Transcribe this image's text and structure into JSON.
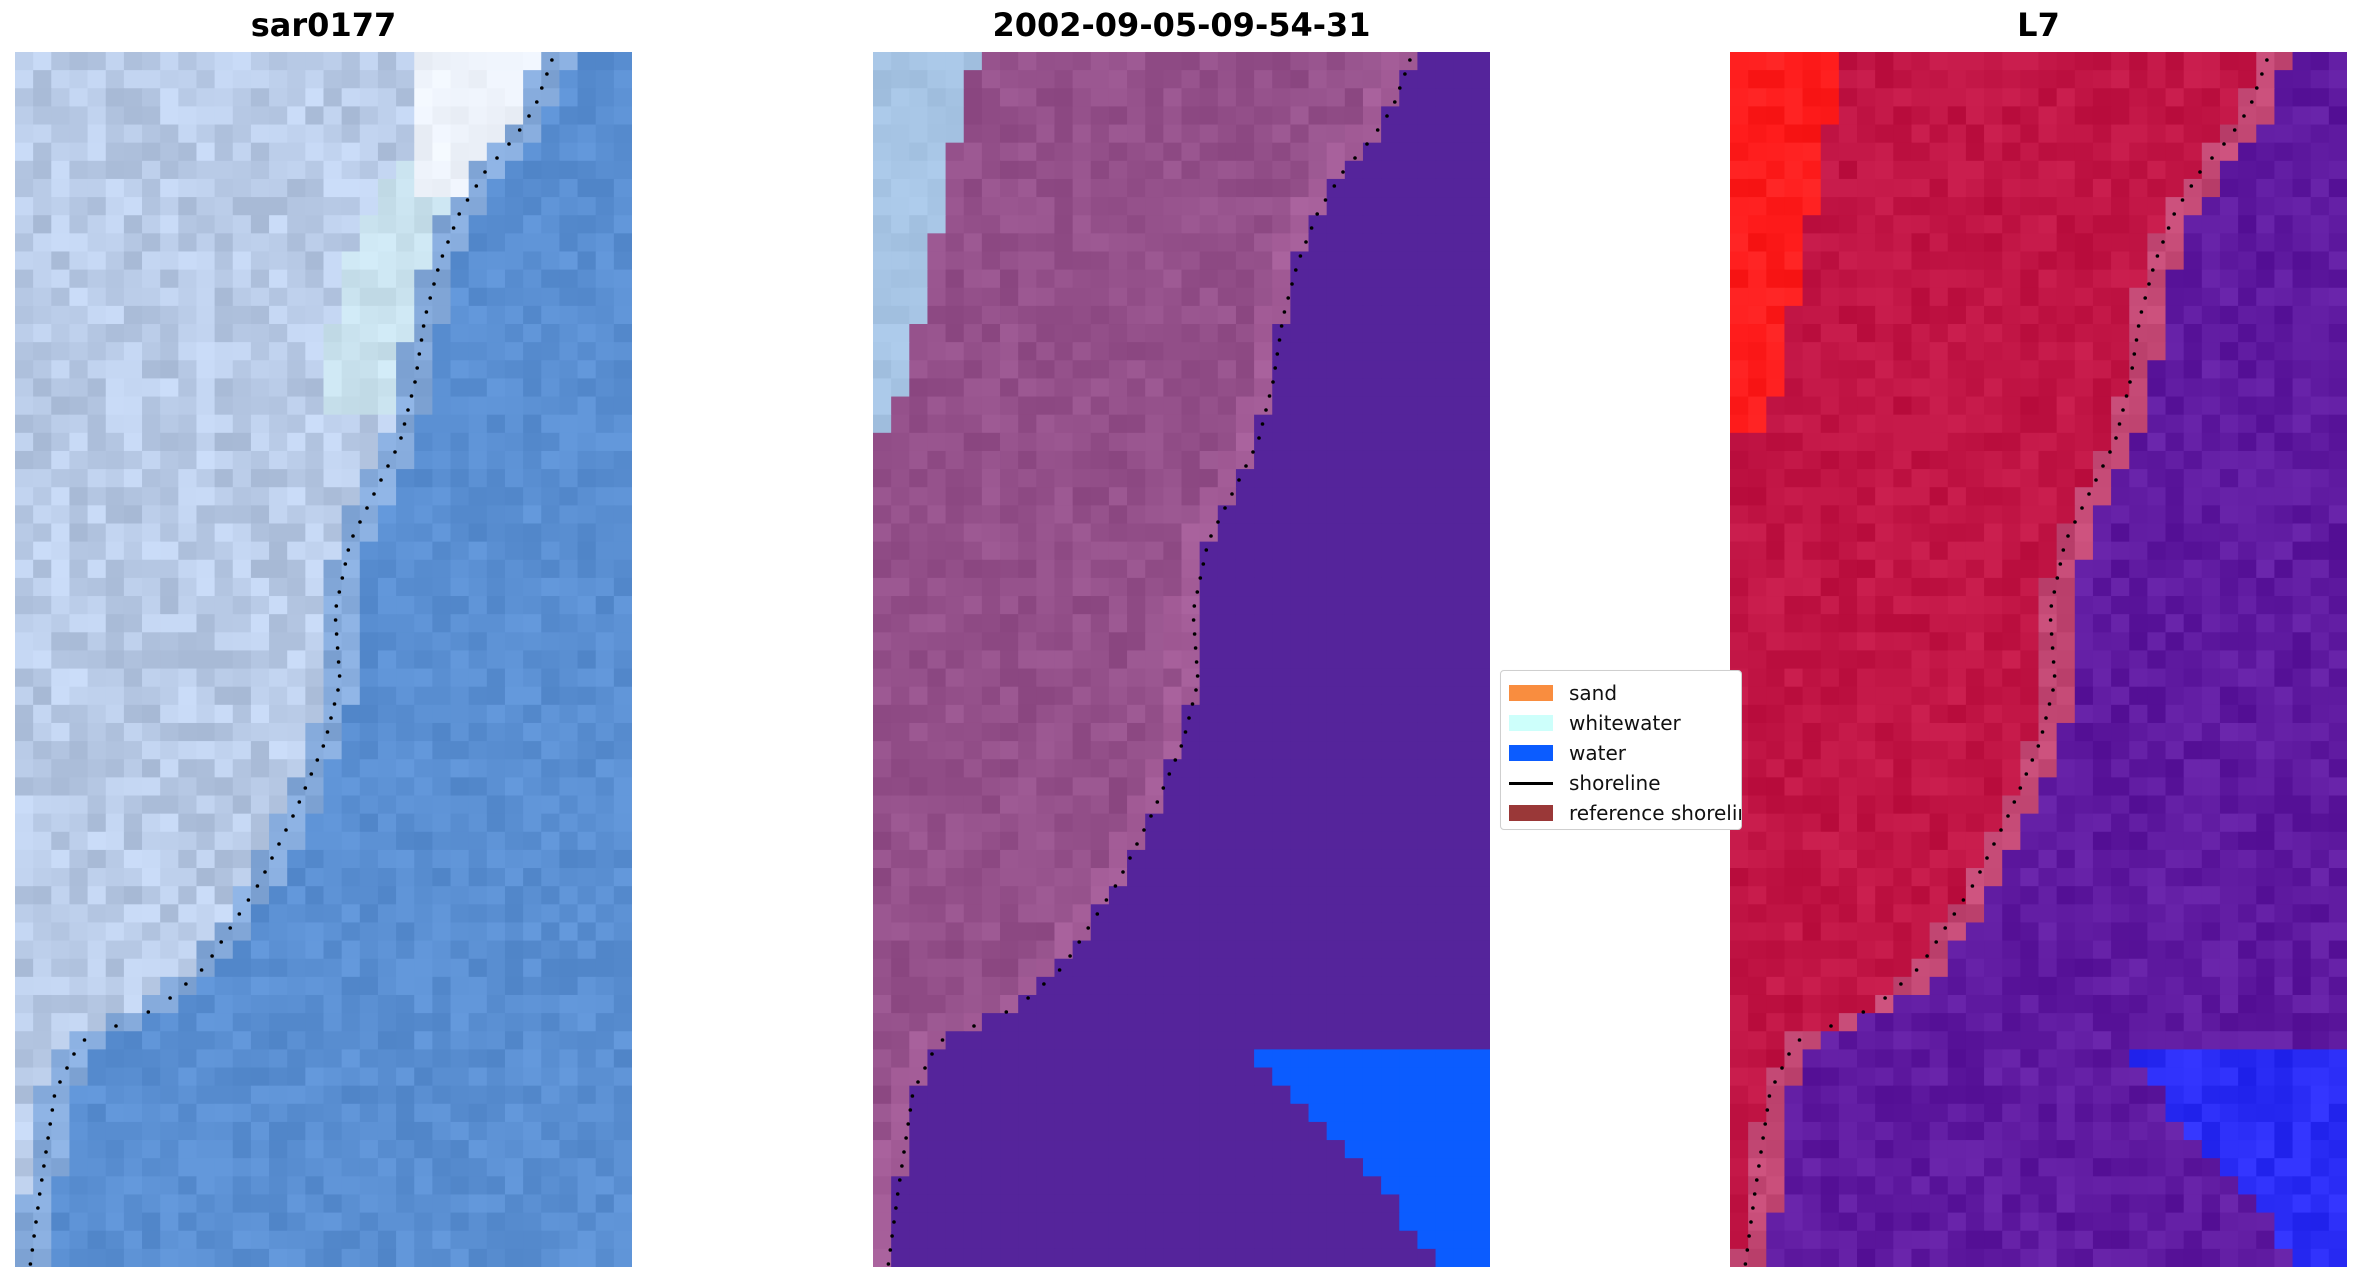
{
  "panels": [
    {
      "title": "sar0177",
      "palette": "rgb"
    },
    {
      "title": "2002-09-05-09-54-31",
      "palette": "classified"
    },
    {
      "title": "L7",
      "palette": "index"
    }
  ],
  "legend": {
    "items": [
      {
        "label": "sand",
        "color": "#f98d3f",
        "kind": "patch"
      },
      {
        "label": "whitewater",
        "color": "#cdfffb",
        "kind": "patch"
      },
      {
        "label": "water",
        "color": "#0b5cff",
        "kind": "patch"
      },
      {
        "label": "shoreline",
        "color": "#000000",
        "kind": "line"
      },
      {
        "label": "reference shoreline",
        "color": "#9a3838",
        "kind": "patch"
      }
    ]
  },
  "colors": {
    "land_classified": "#94508a",
    "water_classified": "#55249b",
    "water_blue": "#0b5cff",
    "whitewater_classified": "#a6c4e4",
    "rgb_water": "#5a8fd2",
    "rgb_land": "#b9cbe7",
    "index_land": "#c11545",
    "index_water": "#5f1aa0",
    "index_red": "#ff1c1c"
  }
}
